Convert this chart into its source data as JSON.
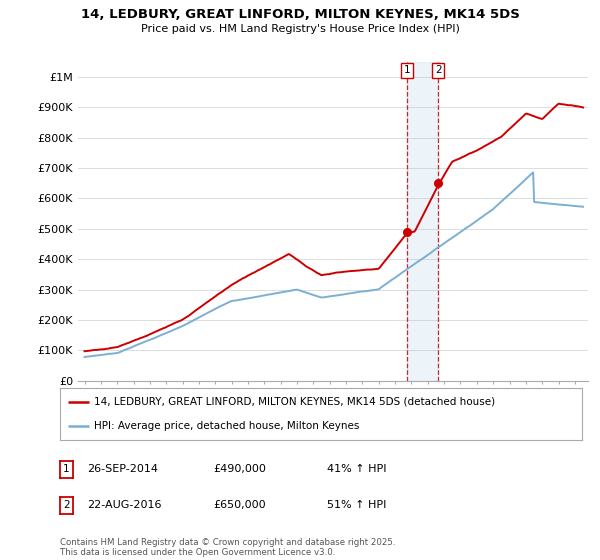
{
  "title": "14, LEDBURY, GREAT LINFORD, MILTON KEYNES, MK14 5DS",
  "subtitle": "Price paid vs. HM Land Registry's House Price Index (HPI)",
  "house_color": "#cc0000",
  "hpi_color": "#7bafd4",
  "background_color": "#ffffff",
  "grid_color": "#dddddd",
  "annotation1_date": "26-SEP-2014",
  "annotation1_price": "£490,000",
  "annotation1_pct": "41% ↑ HPI",
  "annotation2_date": "22-AUG-2016",
  "annotation2_price": "£650,000",
  "annotation2_pct": "51% ↑ HPI",
  "legend_house": "14, LEDBURY, GREAT LINFORD, MILTON KEYNES, MK14 5DS (detached house)",
  "legend_hpi": "HPI: Average price, detached house, Milton Keynes",
  "footer": "Contains HM Land Registry data © Crown copyright and database right 2025.\nThis data is licensed under the Open Government Licence v3.0.",
  "ylim": [
    0,
    1050000
  ],
  "yticks": [
    0,
    100000,
    200000,
    300000,
    400000,
    500000,
    600000,
    700000,
    800000,
    900000,
    1000000
  ],
  "ytick_labels": [
    "£0",
    "£100K",
    "£200K",
    "£300K",
    "£400K",
    "£500K",
    "£600K",
    "£700K",
    "£800K",
    "£900K",
    "£1M"
  ],
  "sale1_year": 2014.74,
  "sale1_value": 490000,
  "sale2_year": 2016.64,
  "sale2_value": 650000,
  "xlim_left": 1994.6,
  "xlim_right": 2025.8
}
